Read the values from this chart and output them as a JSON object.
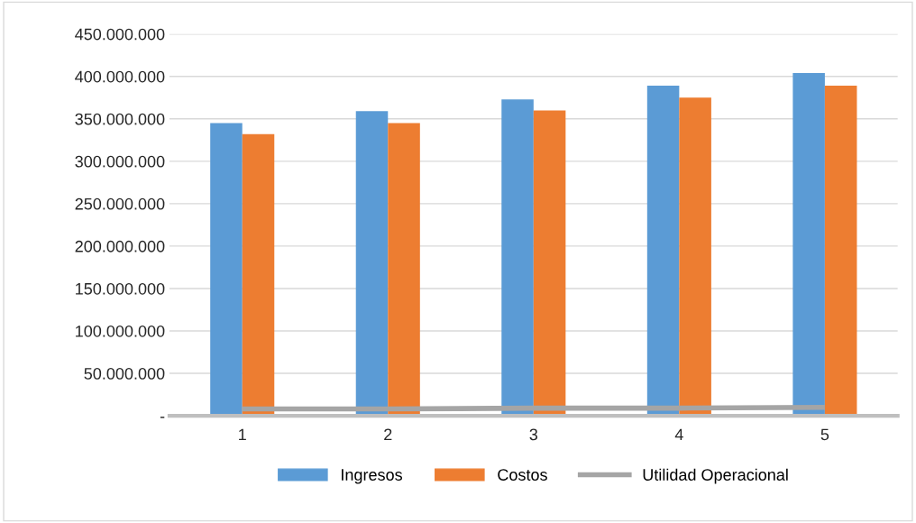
{
  "chart_data": {
    "type": "bar",
    "categories": [
      "1",
      "2",
      "3",
      "4",
      "5"
    ],
    "series": [
      {
        "name": "Ingresos",
        "color": "#5b9bd5",
        "values": [
          345000000,
          359000000,
          373000000,
          389000000,
          404000000
        ]
      },
      {
        "name": "Costos",
        "color": "#ed7d31",
        "values": [
          332000000,
          345000000,
          360000000,
          375000000,
          389000000
        ]
      },
      {
        "name": "Utilidad Operacional",
        "type": "line",
        "color": "#a5a5a5",
        "values": [
          8000000,
          8000000,
          9000000,
          9000000,
          10000000
        ]
      }
    ],
    "ylim": [
      0,
      450000000
    ],
    "yticks": [
      {
        "value": 0,
        "label": "-"
      },
      {
        "value": 50000000,
        "label": "50.000.000"
      },
      {
        "value": 100000000,
        "label": "100.000.000"
      },
      {
        "value": 150000000,
        "label": "150.000.000"
      },
      {
        "value": 200000000,
        "label": "200.000.000"
      },
      {
        "value": 250000000,
        "label": "250.000.000"
      },
      {
        "value": 300000000,
        "label": "300.000.000"
      },
      {
        "value": 350000000,
        "label": "350.000.000"
      },
      {
        "value": 400000000,
        "label": "400.000.000"
      },
      {
        "value": 450000000,
        "label": "450.000.000"
      }
    ],
    "grid": "y",
    "legend": "bottom",
    "marker": "none"
  }
}
